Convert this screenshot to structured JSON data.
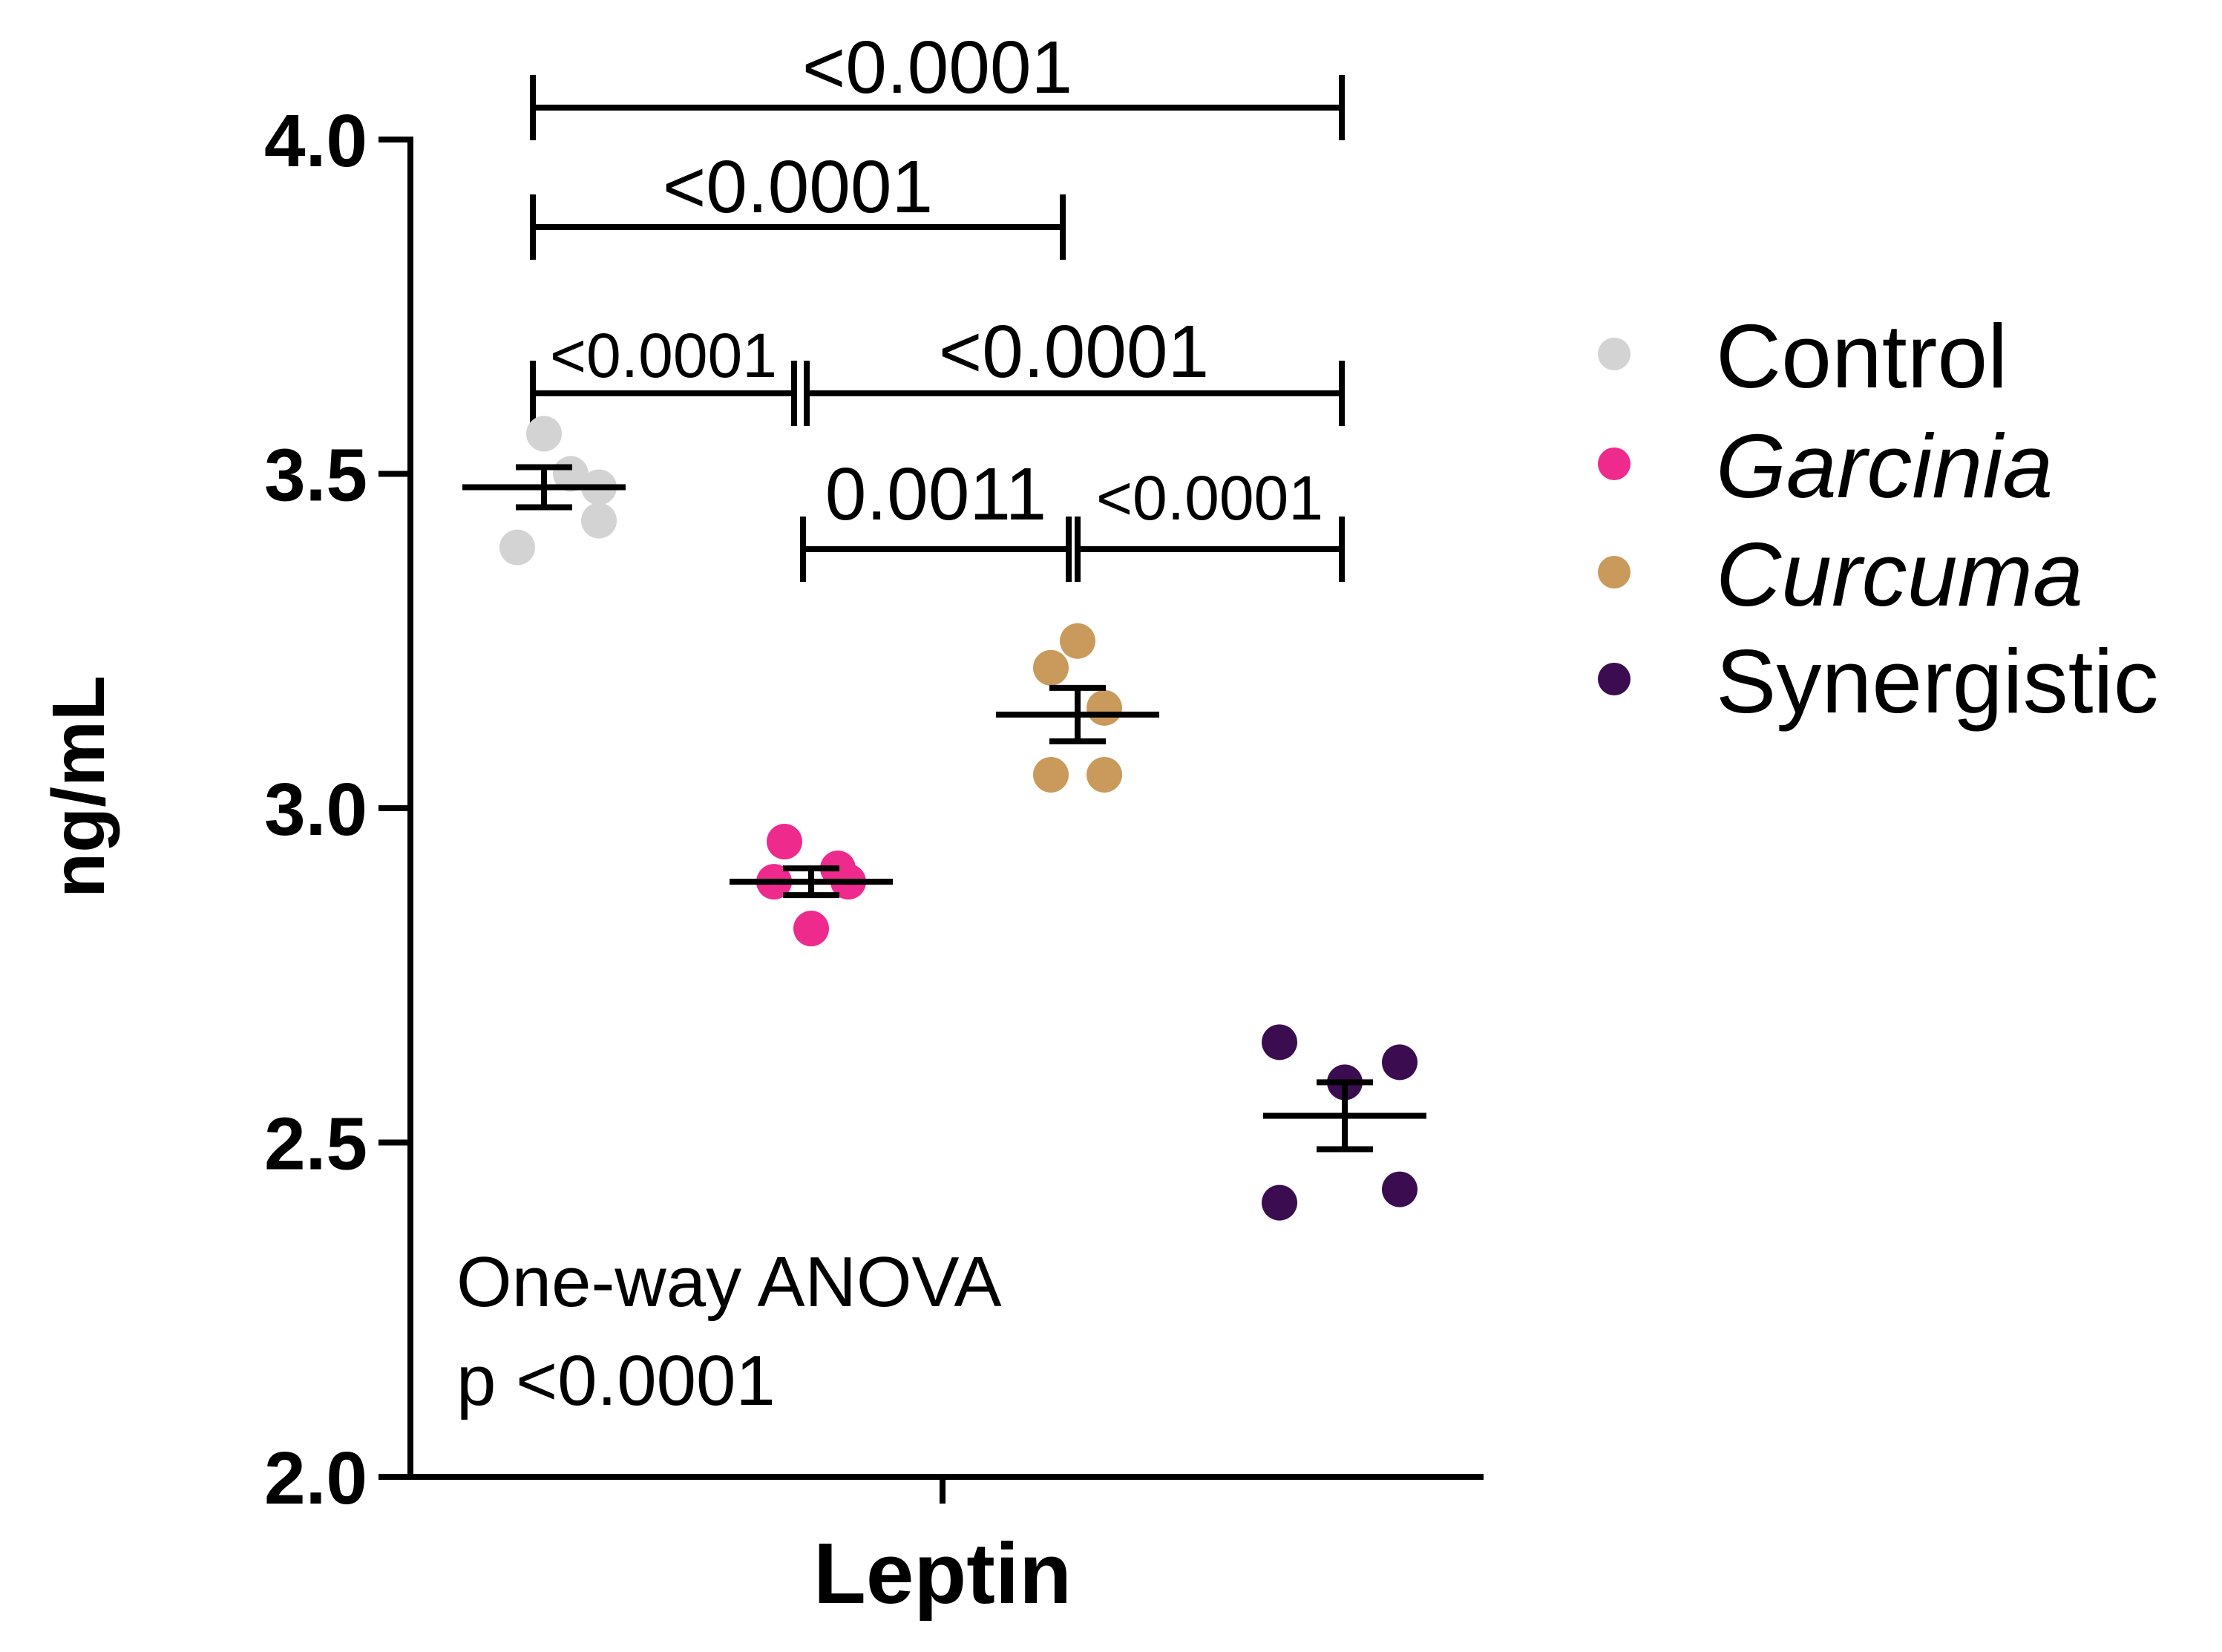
{
  "chart_data": {
    "type": "scatter",
    "title": "",
    "xlabel": "Leptin",
    "ylabel": "ng/mL",
    "ylim": [
      2.0,
      4.0
    ],
    "yticks": [
      "2.0",
      "2.5",
      "3.0",
      "3.5",
      "4.0"
    ],
    "grid": false,
    "legend_position": "right",
    "annotation": [
      "One-way ANOVA",
      "p <0.0001"
    ],
    "groups": [
      {
        "name": "Control",
        "italic": false,
        "color": "#d3d3d3",
        "mean": 3.48,
        "sem_low": 3.45,
        "sem_high": 3.51,
        "points": [
          3.56,
          3.39,
          3.43,
          3.5,
          3.48
        ]
      },
      {
        "name": "Garcinia",
        "italic": true,
        "color": "#ee2a8c",
        "mean": 2.89,
        "sem_low": 2.87,
        "sem_high": 2.91,
        "points": [
          2.95,
          2.82,
          2.89,
          2.91,
          2.89
        ]
      },
      {
        "name": "Curcuma",
        "italic": true,
        "color": "#c99a5b",
        "mean": 3.14,
        "sem_low": 3.1,
        "sem_high": 3.18,
        "points": [
          3.25,
          3.21,
          3.05,
          3.05,
          3.15
        ]
      },
      {
        "name": "Synergistic",
        "italic": false,
        "color": "#3b0c4f",
        "mean": 2.54,
        "sem_low": 2.49,
        "sem_high": 2.59,
        "points": [
          2.65,
          2.62,
          2.59,
          2.41,
          2.43
        ]
      }
    ],
    "comparisons": [
      {
        "from": 0,
        "to": 3,
        "label": "<0.0001"
      },
      {
        "from": 0,
        "to": 2,
        "label": "<0.0001"
      },
      {
        "from": 0,
        "to": 1,
        "label": "<0.0001"
      },
      {
        "from": 1,
        "to": 3,
        "label": "<0.0001"
      },
      {
        "from": 1,
        "to": 2,
        "label": "0.0011"
      },
      {
        "from": 2,
        "to": 3,
        "label": "<0.0001"
      }
    ]
  }
}
